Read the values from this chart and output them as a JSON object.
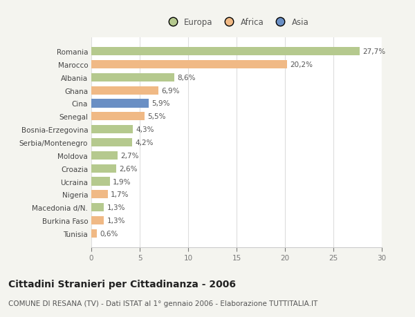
{
  "categories": [
    "Romania",
    "Marocco",
    "Albania",
    "Ghana",
    "Cina",
    "Senegal",
    "Bosnia-Erzegovina",
    "Serbia/Montenegro",
    "Moldova",
    "Croazia",
    "Ucraina",
    "Nigeria",
    "Macedonia d/N.",
    "Burkina Faso",
    "Tunisia"
  ],
  "values": [
    27.7,
    20.2,
    8.6,
    6.9,
    5.9,
    5.5,
    4.3,
    4.2,
    2.7,
    2.6,
    1.9,
    1.7,
    1.3,
    1.3,
    0.6
  ],
  "labels": [
    "27,7%",
    "20,2%",
    "8,6%",
    "6,9%",
    "5,9%",
    "5,5%",
    "4,3%",
    "4,2%",
    "2,7%",
    "2,6%",
    "1,9%",
    "1,7%",
    "1,3%",
    "1,3%",
    "0,6%"
  ],
  "colors": [
    "#b5c98e",
    "#f0b985",
    "#b5c98e",
    "#f0b985",
    "#6a8fc4",
    "#f0b985",
    "#b5c98e",
    "#b5c98e",
    "#b5c98e",
    "#b5c98e",
    "#b5c98e",
    "#f0b985",
    "#b5c98e",
    "#f0b985",
    "#f0b985"
  ],
  "legend_labels": [
    "Europa",
    "Africa",
    "Asia"
  ],
  "legend_colors": [
    "#b5c98e",
    "#f0b985",
    "#6a8fc4"
  ],
  "xlim": [
    0,
    30
  ],
  "xticks": [
    0,
    5,
    10,
    15,
    20,
    25,
    30
  ],
  "title": "Cittadini Stranieri per Cittadinanza - 2006",
  "subtitle": "COMUNE DI RESANA (TV) - Dati ISTAT al 1° gennaio 2006 - Elaborazione TUTTITALIA.IT",
  "background_color": "#f4f4ef",
  "bar_background": "#ffffff",
  "grid_color": "#dddddd",
  "label_fontsize": 7.5,
  "tick_fontsize": 7.5,
  "legend_fontsize": 8.5,
  "title_fontsize": 10,
  "subtitle_fontsize": 7.5
}
